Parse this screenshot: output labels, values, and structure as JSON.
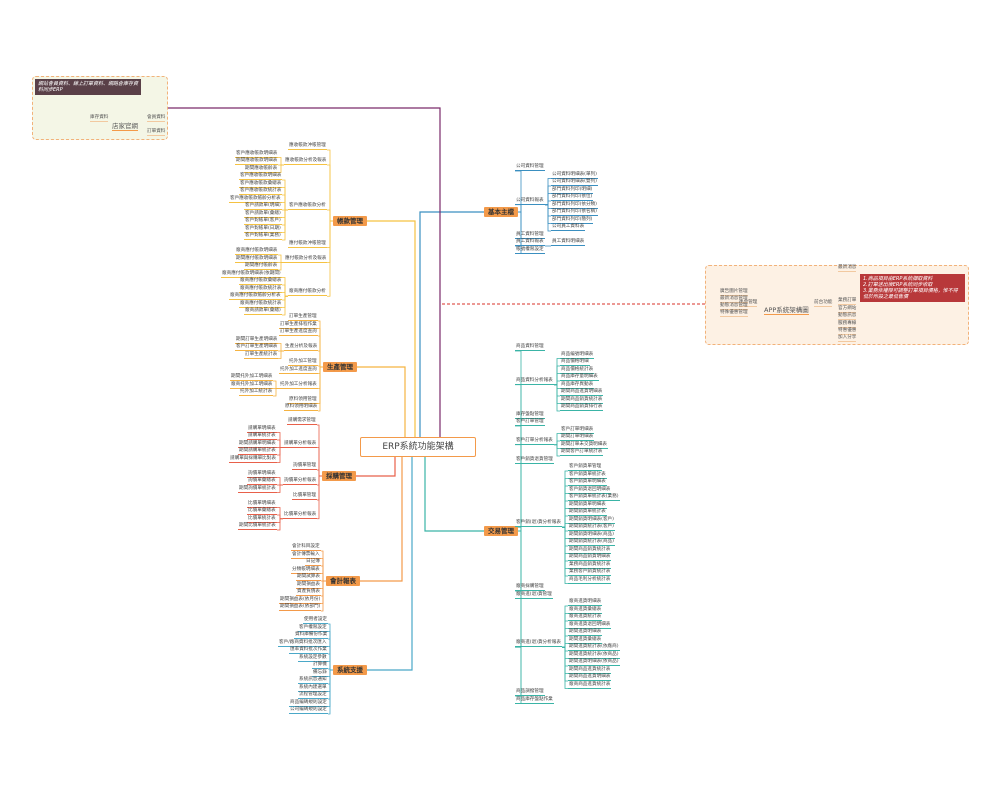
{
  "center": {
    "label": "ERP系統功能架構",
    "border_color": "#f39a4a"
  },
  "website": {
    "label": "店家官網",
    "note": "網站會員資料、線上訂單資料、網路倉庫存資料同步ERP",
    "children": [
      "庫存資料",
      "會員資料",
      "訂單資料"
    ],
    "link_color": "#7a2a6a"
  },
  "app": {
    "label": "APP系統架構圖",
    "backend": {
      "label": "後台管理",
      "children": [
        "廣告圖片管理",
        "最新消息管理",
        "動態消息管理",
        "特殊優惠管理"
      ]
    },
    "frontend": {
      "label": "前台功能",
      "children": [
        "最新消息",
        "業務訂單",
        "官方網站",
        "動態訊息",
        "服務專線",
        "特惠優惠",
        "加入分享"
      ]
    },
    "note": [
      "1.商品項目由ERP系統擷取資料",
      "2.訂單送出後ERP系統同步收取",
      "3.業務依權限可調整訂單項目價格，惟不得低於所設之最低售價"
    ],
    "link_color": "#d9302a"
  },
  "left_branches": [
    {
      "label": "帳款管理",
      "color": "#f5c242",
      "items": [
        {
          "label": "應收帳款沖帳管理"
        },
        {
          "label": "應收帳款分析及報表",
          "children": [
            "客戶應收帳款明細表",
            "期間應收帳款明細表",
            "期間應收帳齡表"
          ]
        },
        {
          "label": "客戶應收帳款分析",
          "children": [
            "客戶應收帳款明細表",
            "客戶應收帳款彙總表",
            "客戶應收帳款統計表",
            "客戶應收帳款帳齡分析表",
            "客戶請款單(明細)",
            "客戶請款單(彙總)",
            "客戶對帳單(客戶)",
            "客戶對帳單(日期)",
            "客戶對帳單(業務)"
          ]
        },
        {
          "label": "應付帳款沖帳管理"
        },
        {
          "label": "應付帳款分析及報表",
          "children": [
            "廠商應付帳款明細表",
            "期間應付帳款明細表",
            "期間應付帳齡表"
          ]
        },
        {
          "label": "廠商應付帳款分析",
          "children": [
            "廠商應付帳款明細表(依期間)",
            "廠商應付帳款彙總表",
            "廠商應付帳款統計表",
            "廠商應付帳款帳齡分析表",
            "廠商應付帳款統計表",
            "廠商請款單(彙總)"
          ]
        }
      ]
    },
    {
      "label": "生產管理",
      "color": "#f5b342",
      "items": [
        {
          "label": "訂單生產管理"
        },
        {
          "label": "訂單生產排程作業"
        },
        {
          "label": "訂單生產進度查詢"
        },
        {
          "label": "生產分析及報表",
          "children": [
            "期間訂單生產明細表",
            "客戶訂單生產明細表",
            "訂單生產統計表"
          ]
        },
        {
          "label": "托外加工管理"
        },
        {
          "label": "托外加工進度查詢"
        },
        {
          "label": "托外加工分析報表",
          "children": [
            "期間托外加工明細表",
            "廠商托外加工明細表",
            "托外加工統計表"
          ]
        },
        {
          "label": "原料領用管理"
        },
        {
          "label": "原料領用明細表"
        }
      ]
    },
    {
      "label": "採購管理",
      "color": "#e8604a",
      "items": [
        {
          "label": "請購需求管理"
        },
        {
          "label": "請購單分析報表",
          "children": [
            "請購單明細表",
            "請購單統計表",
            "期間請購單明細表",
            "期間請購單統計表",
            "請購單與採購單比對表"
          ]
        },
        {
          "label": "詢價單管理"
        },
        {
          "label": "詢價單分析報表",
          "children": [
            "詢價單明細表",
            "詢價單彙總表",
            "期間詢價單統計表"
          ]
        },
        {
          "label": "比價單管理"
        },
        {
          "label": "比價單分析報表",
          "children": [
            "比價單明細表",
            "比價單彙總表",
            "比價單統計表",
            "期間比價單統計表"
          ]
        }
      ]
    },
    {
      "label": "會計報表",
      "color": "#f39a4a",
      "items": [
        {
          "label": "會計科目設定"
        },
        {
          "label": "會計傳票輸入"
        },
        {
          "label": "日記簿"
        },
        {
          "label": "分類帳明細表"
        },
        {
          "label": "期間試算表"
        },
        {
          "label": "期間損益表"
        },
        {
          "label": "資產負債表"
        },
        {
          "label": "期間損益表(依月份)"
        },
        {
          "label": "期間損益表(依部門)"
        }
      ]
    },
    {
      "label": "系統支援",
      "color": "#4aa8c8",
      "items": [
        {
          "label": "使用者設定"
        },
        {
          "label": "客戶權限設定"
        },
        {
          "label": "資料庫備份作業"
        },
        {
          "label": "客戶/廠商資料批次匯入"
        },
        {
          "label": "匯率資料批次作業"
        },
        {
          "label": "系統設定參數"
        },
        {
          "label": "計算機"
        },
        {
          "label": "備忘錄"
        },
        {
          "label": "系統訊息通知"
        },
        {
          "label": "系統內建選單"
        },
        {
          "label": "流程管理設定"
        },
        {
          "label": "商品編碼規則設定"
        },
        {
          "label": "公司編碼規則設定"
        }
      ]
    }
  ],
  "right_branches": [
    {
      "label": "基本主檔",
      "color": "#3a8fc0",
      "items": [
        {
          "label": "公司資料管理"
        },
        {
          "label": "公司資料報表",
          "children": [
            "公司資料明細表(單列)",
            "公司資料明細表(雙列)",
            "部門資料列印(明細)",
            "部門資料列印(依位)",
            "部門資料列印(依分類)",
            "部門資料列印(依名稱)",
            "部門資料列印(簡列)",
            "公司員工資料表"
          ]
        },
        {
          "label": "員工資料管理"
        },
        {
          "label": "員工資料報表",
          "children": [
            "員工資料明細表"
          ]
        },
        {
          "label": "帳號權限設定"
        }
      ]
    },
    {
      "label": "交易管理",
      "color": "#3ab4a6",
      "items": [
        {
          "label": "商品資料管理"
        },
        {
          "label": "商品資料分析報表",
          "children": [
            "商品編號明細表",
            "商品價格明細",
            "商品價格統計表",
            "商品庫存量明細表",
            "商品庫存異動表",
            "期間商品進貨明細表",
            "期間商品銷貨統計表",
            "期間商品銷貨排行表"
          ]
        },
        {
          "label": "庫存盤點管理"
        },
        {
          "label": "客戶訂單管理"
        },
        {
          "label": "客戶訂單分析報表",
          "children": [
            "客戶訂單明細表",
            "期間訂單明細表",
            "期間訂單未交貨明細表",
            "期間客戶訂單統計表"
          ]
        },
        {
          "label": "客戶銷貨退貨管理"
        },
        {
          "label": "客戶銷(退)貨分析報表",
          "children": [
            "客戶銷貨單管理",
            "客戶銷貨單統計表",
            "客戶銷貨單明細表",
            "客戶銷貨退回明細表",
            "客戶銷貨單統計表(業務)",
            "期間銷貨單明細表",
            "期間銷貨單統計表",
            "期間銷貨明細表(客戶)",
            "期間銷貨統計表(客戶)",
            "期間銷貨明細表(商品)",
            "期間銷貨統計表(商品)",
            "期間商品銷貨統計表",
            "期間商品銷貨明細表",
            "業務商品銷貨統計表",
            "業務客戶銷貨統計表",
            "商品毛利分析統計表"
          ]
        },
        {
          "label": "廠商採購管理"
        },
        {
          "label": "廠商進(退)貨管理"
        },
        {
          "label": "廠商進(退)貨分析報表",
          "children": [
            "廠商進貨明細表",
            "廠商進貨彙總表",
            "廠商進貨統計表",
            "廠商進貨退回明細表",
            "期間進貨明細表",
            "期間進貨彙總表",
            "期間進貨統計表(依廠商)",
            "期間進貨統計表(依商品)",
            "期間進貨明細表(依商品)",
            "期間商品進貨統計表",
            "期間商品進貨明細表",
            "廠商商品進貨統計表"
          ]
        },
        {
          "label": "商品調撥管理"
        },
        {
          "label": "商品庫存盤點作業"
        }
      ]
    }
  ]
}
